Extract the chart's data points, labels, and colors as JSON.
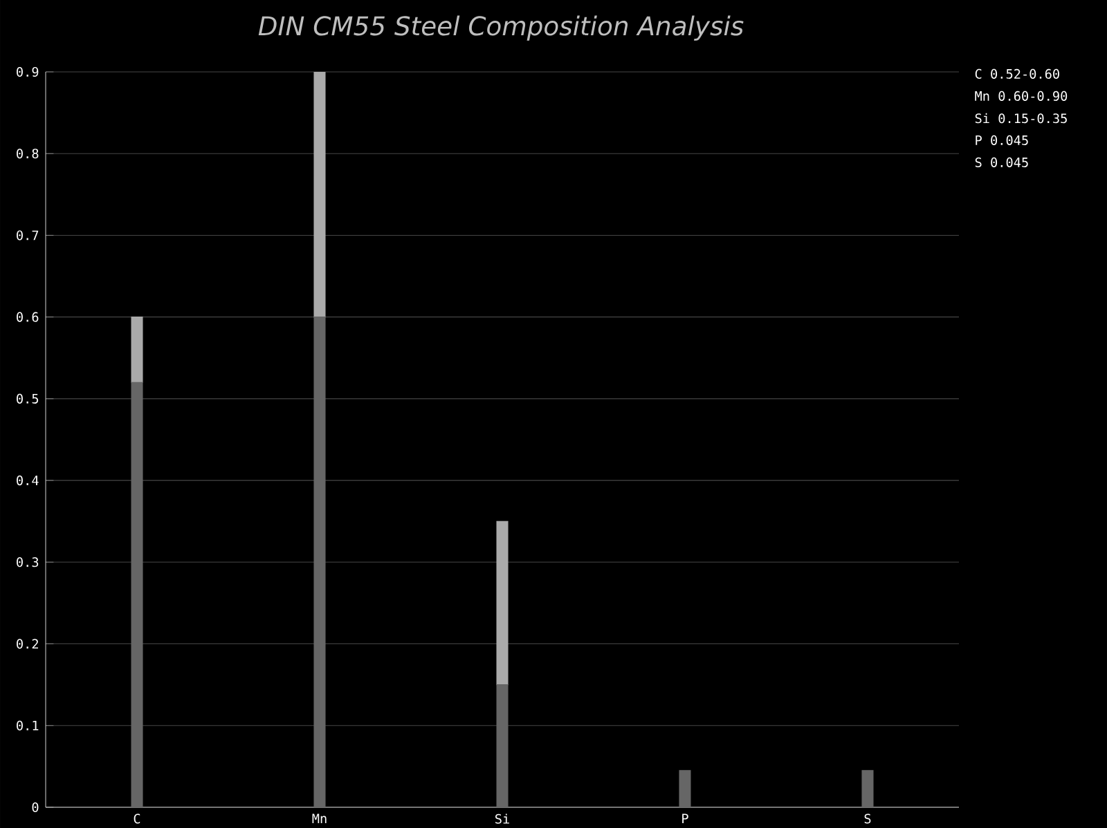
{
  "chart_data": {
    "type": "bar",
    "title": "DIN CM55 Steel Composition Analysis",
    "categories": [
      "C",
      "Mn",
      "Si",
      "P",
      "S"
    ],
    "stacked": true,
    "series": [
      {
        "color": "#666666",
        "values": [
          0.52,
          0.6,
          0.15,
          0.045,
          0.045
        ]
      },
      {
        "color": "#aaaaaa",
        "values": [
          0.08,
          0.3,
          0.2,
          0,
          0
        ]
      }
    ],
    "ylim": [
      0,
      0.9
    ],
    "yticks": [
      0,
      0.1,
      0.2,
      0.3,
      0.4,
      0.5,
      0.6,
      0.7,
      0.8,
      0.9
    ],
    "grid": "y",
    "annotations": [
      "C  0.52-0.60",
      "Mn 0.60-0.90",
      "Si 0.15-0.35",
      "P  0.045",
      "S  0.045"
    ]
  }
}
